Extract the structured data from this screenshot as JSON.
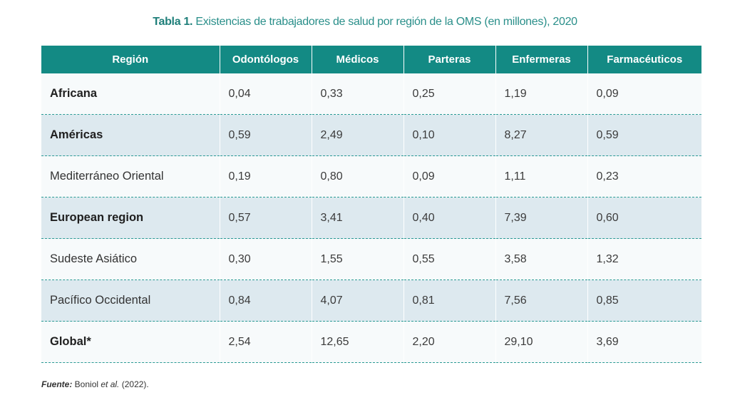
{
  "caption": {
    "label": "Tabla 1.",
    "text": " Existencias de trabajadores de salud por región de la OMS (en millones), 2020"
  },
  "table": {
    "headers": [
      "Región",
      "Odontólogos",
      "Médicos",
      "Parteras",
      "Enfermeras",
      "Farmacéuticos"
    ],
    "rows": [
      {
        "region": "Africana",
        "values": [
          "0,04",
          "0,33",
          "0,25",
          "1,19",
          "0,09"
        ]
      },
      {
        "region": "Américas",
        "values": [
          "0,59",
          "2,49",
          "0,10",
          "8,27",
          "0,59"
        ]
      },
      {
        "region": "Mediterráneo Oriental",
        "values": [
          "0,19",
          "0,80",
          "0,09",
          "1,11",
          "0,23"
        ]
      },
      {
        "region": "European region",
        "values": [
          "0,57",
          "3,41",
          "0,40",
          "7,39",
          "0,60"
        ]
      },
      {
        "region": "Sudeste Asiático",
        "values": [
          "0,30",
          "1,55",
          "0,55",
          "3,58",
          "1,32"
        ]
      },
      {
        "region": "Pacífico Occidental",
        "values": [
          "0,84",
          "4,07",
          "0,81",
          "7,56",
          "0,85"
        ]
      },
      {
        "region": "Global*",
        "values": [
          "2,54",
          "12,65",
          "2,20",
          "29,10",
          "3,69"
        ]
      }
    ]
  },
  "source": {
    "label": "Fuente:",
    "authors": " Boniol ",
    "etal": "et al.",
    "year": " (2022)."
  },
  "colors": {
    "header_bg": "#138a84",
    "caption": "#2a8f8a",
    "row_odd": "#f7fafb",
    "row_even": "#dde9ef"
  }
}
